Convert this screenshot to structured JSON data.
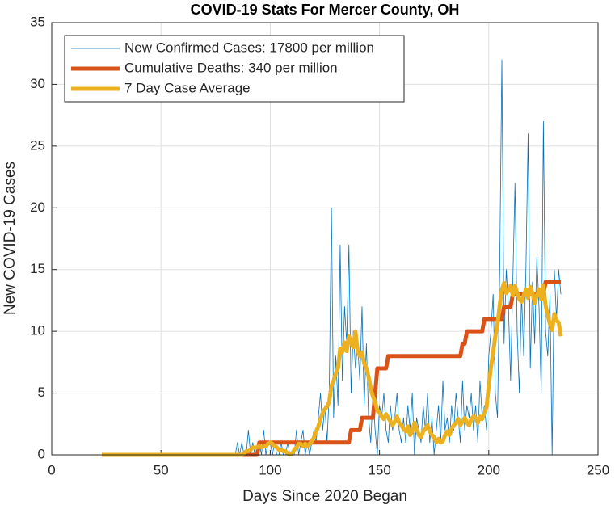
{
  "chart_data": {
    "type": "line",
    "title": "COVID-19 Stats For Mercer County, OH",
    "xlabel": "Days Since 2020 Began",
    "ylabel": "New COVID-19 Cases",
    "xlim": [
      0,
      250
    ],
    "xticks": [
      0,
      50,
      100,
      150,
      200,
      250
    ],
    "ylim": [
      0,
      35
    ],
    "yticks": [
      0,
      5,
      10,
      15,
      20,
      25,
      30,
      35
    ],
    "grid": true,
    "legend": "upper-left",
    "x": [
      23,
      24,
      25,
      26,
      27,
      28,
      29,
      30,
      31,
      32,
      33,
      34,
      35,
      36,
      37,
      38,
      39,
      40,
      41,
      42,
      43,
      44,
      45,
      46,
      47,
      48,
      49,
      50,
      51,
      52,
      53,
      54,
      55,
      56,
      57,
      58,
      59,
      60,
      61,
      62,
      63,
      64,
      65,
      66,
      67,
      68,
      69,
      70,
      71,
      72,
      73,
      74,
      75,
      76,
      77,
      78,
      79,
      80,
      81,
      82,
      83,
      84,
      85,
      86,
      87,
      88,
      89,
      90,
      91,
      92,
      93,
      94,
      95,
      96,
      97,
      98,
      99,
      100,
      101,
      102,
      103,
      104,
      105,
      106,
      107,
      108,
      109,
      110,
      111,
      112,
      113,
      114,
      115,
      116,
      117,
      118,
      119,
      120,
      121,
      122,
      123,
      124,
      125,
      126,
      127,
      128,
      129,
      130,
      131,
      132,
      133,
      134,
      135,
      136,
      137,
      138,
      139,
      140,
      141,
      142,
      143,
      144,
      145,
      146,
      147,
      148,
      149,
      150,
      151,
      152,
      153,
      154,
      155,
      156,
      157,
      158,
      159,
      160,
      161,
      162,
      163,
      164,
      165,
      166,
      167,
      168,
      169,
      170,
      171,
      172,
      173,
      174,
      175,
      176,
      177,
      178,
      179,
      180,
      181,
      182,
      183,
      184,
      185,
      186,
      187,
      188,
      189,
      190,
      191,
      192,
      193,
      194,
      195,
      196,
      197,
      198,
      199,
      200,
      201,
      202,
      203,
      204,
      205,
      206,
      207,
      208,
      209,
      210,
      211,
      212,
      213,
      214,
      215,
      216,
      217,
      218,
      219,
      220,
      221,
      222,
      223,
      224,
      225,
      226,
      227,
      228,
      229,
      230,
      231,
      232,
      233
    ],
    "series": [
      {
        "name": "New Confirmed Cases: 17800 per million",
        "color": "#0072bd",
        "width": 0.8,
        "values": [
          0,
          0,
          0,
          0,
          0,
          0,
          0,
          0,
          0,
          0,
          0,
          0,
          0,
          0,
          0,
          0,
          0,
          0,
          0,
          0,
          0,
          0,
          0,
          0,
          0,
          0,
          0,
          0,
          0,
          0,
          0,
          0,
          0,
          0,
          0,
          0,
          0,
          0,
          0,
          0,
          0,
          0,
          0,
          0,
          0,
          0,
          0,
          0,
          0,
          0,
          0,
          0,
          0,
          0,
          0,
          0,
          0,
          0,
          0,
          0,
          0,
          0,
          1,
          0,
          1,
          0,
          0,
          2,
          0,
          1,
          0,
          0,
          1,
          0,
          2,
          0,
          1,
          1,
          0,
          1,
          0,
          0,
          1,
          0,
          0,
          1,
          0,
          0,
          0,
          2,
          0,
          1,
          2,
          0,
          1,
          0,
          1,
          2,
          1,
          3,
          5,
          2,
          4,
          1,
          5,
          20,
          3,
          8,
          4,
          17,
          6,
          12,
          9,
          17,
          5,
          10,
          7,
          9,
          6,
          12,
          4,
          9,
          3,
          1,
          5,
          2,
          0,
          4,
          3,
          5,
          2,
          1,
          4,
          2,
          3,
          5,
          2,
          1,
          3,
          1,
          4,
          2,
          5,
          0,
          3,
          2,
          1,
          4,
          2,
          5,
          1,
          3,
          0,
          2,
          4,
          1,
          6,
          2,
          3,
          1,
          4,
          2,
          5,
          3,
          1,
          6,
          2,
          4,
          3,
          5,
          2,
          4,
          1,
          6,
          3,
          4,
          2,
          8,
          10,
          13,
          5,
          3,
          15,
          32,
          9,
          15,
          12,
          6,
          14,
          22,
          10,
          5,
          13,
          8,
          15,
          26,
          7,
          14,
          9,
          16,
          12,
          5,
          27,
          10,
          8,
          13,
          0,
          15,
          11,
          15,
          13
        ]
      },
      {
        "name": "Cumulative Deaths: 340 per million",
        "color": "#d95319",
        "width": 5,
        "values": [
          0,
          0,
          0,
          0,
          0,
          0,
          0,
          0,
          0,
          0,
          0,
          0,
          0,
          0,
          0,
          0,
          0,
          0,
          0,
          0,
          0,
          0,
          0,
          0,
          0,
          0,
          0,
          0,
          0,
          0,
          0,
          0,
          0,
          0,
          0,
          0,
          0,
          0,
          0,
          0,
          0,
          0,
          0,
          0,
          0,
          0,
          0,
          0,
          0,
          0,
          0,
          0,
          0,
          0,
          0,
          0,
          0,
          0,
          0,
          0,
          0,
          0,
          0,
          0,
          0,
          0,
          0,
          0,
          0,
          0,
          0,
          0,
          1,
          1,
          1,
          1,
          1,
          1,
          1,
          1,
          1,
          1,
          1,
          1,
          1,
          1,
          1,
          1,
          1,
          1,
          1,
          1,
          1,
          1,
          1,
          1,
          1,
          1,
          1,
          1,
          1,
          1,
          1,
          1,
          1,
          1,
          1,
          1,
          1,
          1,
          1,
          1,
          1,
          1,
          2,
          2,
          2,
          2,
          2,
          3,
          3,
          3,
          3,
          3,
          3,
          5,
          7,
          7,
          7,
          7,
          7,
          8,
          8,
          8,
          8,
          8,
          8,
          8,
          8,
          8,
          8,
          8,
          8,
          8,
          8,
          8,
          8,
          8,
          8,
          8,
          8,
          8,
          8,
          8,
          8,
          8,
          8,
          8,
          8,
          8,
          8,
          8,
          8,
          8,
          8,
          9,
          9,
          10,
          10,
          10,
          10,
          10,
          10,
          10,
          10,
          11,
          11,
          11,
          11,
          11,
          11,
          11,
          11,
          11,
          12,
          12,
          12,
          12,
          13,
          13,
          13,
          13,
          13,
          13,
          13,
          13,
          13,
          13,
          13,
          13,
          13,
          13,
          13,
          14,
          14,
          14,
          14,
          14,
          14,
          14,
          14
        ]
      },
      {
        "name": "7 Day Case Average",
        "color": "#edb120",
        "width": 5,
        "values": [
          0,
          0,
          0,
          0,
          0,
          0,
          0,
          0,
          0,
          0,
          0,
          0,
          0,
          0,
          0,
          0,
          0,
          0,
          0,
          0,
          0,
          0,
          0,
          0,
          0,
          0,
          0,
          0,
          0,
          0,
          0,
          0,
          0,
          0,
          0,
          0,
          0,
          0,
          0,
          0,
          0,
          0,
          0,
          0,
          0,
          0,
          0,
          0,
          0,
          0,
          0,
          0,
          0,
          0,
          0,
          0,
          0,
          0,
          0,
          0,
          0,
          0,
          0,
          0,
          0,
          0.1,
          0.3,
          0.3,
          0.4,
          0.6,
          0.6,
          0.6,
          0.7,
          0.6,
          0.7,
          0.7,
          0.9,
          1,
          0.9,
          0.7,
          0.6,
          0.4,
          0.4,
          0.3,
          0.3,
          0.1,
          0.1,
          0.1,
          0.4,
          0.6,
          0.9,
          0.9,
          0.7,
          0.9,
          0.7,
          0.9,
          1.1,
          1.4,
          1.9,
          2.3,
          2.9,
          3.4,
          3.7,
          3.9,
          4.3,
          5.6,
          6,
          6.6,
          7,
          8.6,
          8.3,
          9.1,
          8.4,
          9.6,
          9.1,
          8.7,
          10,
          8.4,
          8,
          8.3,
          7.4,
          7,
          6.3,
          5.4,
          4.7,
          4.3,
          3.6,
          3.4,
          3.1,
          2.9,
          3.3,
          3,
          2.7,
          2.4,
          2.7,
          3.1,
          2.6,
          2.4,
          2.1,
          1.9,
          2.3,
          1.6,
          1.9,
          2.6,
          2.1,
          1.6,
          1.4,
          1.9,
          2.1,
          2.4,
          1.9,
          1.6,
          1.4,
          1,
          1.3,
          1,
          1.1,
          1.6,
          1.9,
          1.6,
          2.1,
          2.4,
          2.6,
          2.9,
          2.4,
          2.7,
          3,
          2.6,
          2.4,
          2.9,
          3.1,
          3,
          2.6,
          3.1,
          2.9,
          3.4,
          3.9,
          5.6,
          7.1,
          8.3,
          9.6,
          10.6,
          12.1,
          13.4,
          13.9,
          13.1,
          13.3,
          13.7,
          12.9,
          13.7,
          13.1,
          12.6,
          12.4,
          12.9,
          13.4,
          12.7,
          13.6,
          13.1,
          12.3,
          12.9,
          13.4,
          12.6,
          13.7,
          12.1,
          11.3,
          10.6,
          10.1,
          11.4,
          10.9,
          10.7,
          9.6
        ]
      }
    ]
  }
}
